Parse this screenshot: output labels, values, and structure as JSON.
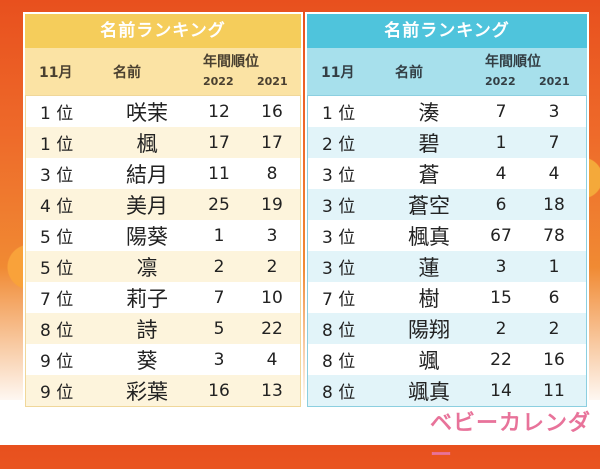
{
  "girls": {
    "title": "名前ランキング",
    "header": {
      "month": "11月",
      "name": "名前",
      "annual": "年間順位",
      "year1": "2022",
      "year2": "2021"
    },
    "rows": [
      {
        "rank": "1 位",
        "name": "咲茉",
        "y2022": "12",
        "y2021": "16"
      },
      {
        "rank": "1 位",
        "name": "楓",
        "y2022": "17",
        "y2021": "17"
      },
      {
        "rank": "3 位",
        "name": "結月",
        "y2022": "11",
        "y2021": "8"
      },
      {
        "rank": "4 位",
        "name": "美月",
        "y2022": "25",
        "y2021": "19"
      },
      {
        "rank": "5 位",
        "name": "陽葵",
        "y2022": "1",
        "y2021": "3"
      },
      {
        "rank": "5 位",
        "name": "凛",
        "y2022": "2",
        "y2021": "2"
      },
      {
        "rank": "7 位",
        "name": "莉子",
        "y2022": "7",
        "y2021": "10"
      },
      {
        "rank": "8 位",
        "name": "詩",
        "y2022": "5",
        "y2021": "22"
      },
      {
        "rank": "9 位",
        "name": "葵",
        "y2022": "3",
        "y2021": "4"
      },
      {
        "rank": "9 位",
        "name": "彩葉",
        "y2022": "16",
        "y2021": "13"
      }
    ]
  },
  "boys": {
    "title": "名前ランキング",
    "header": {
      "month": "11月",
      "name": "名前",
      "annual": "年間順位",
      "year1": "2022",
      "year2": "2021"
    },
    "rows": [
      {
        "rank": "1 位",
        "name": "湊",
        "y2022": "7",
        "y2021": "3"
      },
      {
        "rank": "2 位",
        "name": "碧",
        "y2022": "1",
        "y2021": "7"
      },
      {
        "rank": "3 位",
        "name": "蒼",
        "y2022": "4",
        "y2021": "4"
      },
      {
        "rank": "3 位",
        "name": "蒼空",
        "y2022": "6",
        "y2021": "18"
      },
      {
        "rank": "3 位",
        "name": "楓真",
        "y2022": "67",
        "y2021": "78"
      },
      {
        "rank": "3 位",
        "name": "蓮",
        "y2022": "3",
        "y2021": "1"
      },
      {
        "rank": "7 位",
        "name": "樹",
        "y2022": "15",
        "y2021": "6"
      },
      {
        "rank": "8 位",
        "name": "陽翔",
        "y2022": "2",
        "y2021": "2"
      },
      {
        "rank": "8 位",
        "name": "颯",
        "y2022": "22",
        "y2021": "16"
      },
      {
        "rank": "8 位",
        "name": "颯真",
        "y2022": "14",
        "y2021": "11"
      }
    ]
  },
  "logo": "ベビーカレンダー",
  "colors": {
    "girls_accent": "#f5cd5b",
    "boys_accent": "#4fc4dc",
    "logo": "#e8739a"
  }
}
